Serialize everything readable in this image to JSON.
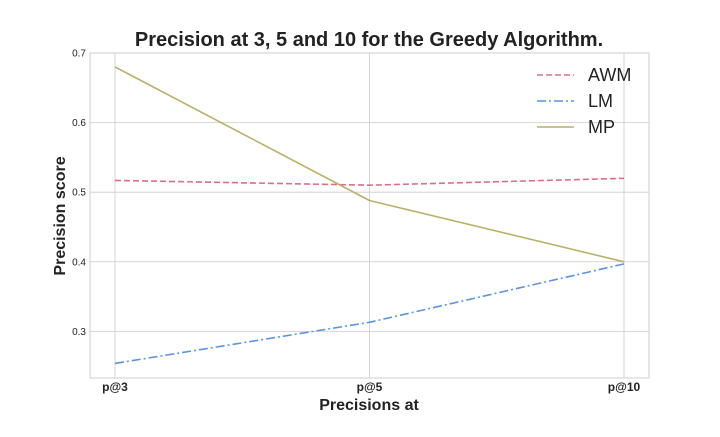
{
  "chart_data": {
    "type": "line",
    "title": "Precision at 3, 5 and 10 for the Greedy Algorithm.",
    "xlabel": "Precisions at",
    "ylabel": "Precision score",
    "categories": [
      "p@3",
      "p@5",
      "p@10"
    ],
    "yticks": [
      "0.3",
      "0.4",
      "0.5",
      "0.6",
      "0.7"
    ],
    "ylim": [
      0.233,
      0.7
    ],
    "grid": true,
    "legend_position": "top-right",
    "series": [
      {
        "name": "AWM",
        "values": [
          0.517,
          0.51,
          0.52
        ],
        "color": "#dd6e86",
        "dash": "dashed"
      },
      {
        "name": "LM",
        "values": [
          0.254,
          0.313,
          0.397
        ],
        "color": "#5a94e8",
        "dash": "dashdot"
      },
      {
        "name": "MP",
        "values": [
          0.68,
          0.488,
          0.4
        ],
        "color": "#bbb068",
        "dash": "solid"
      }
    ]
  }
}
